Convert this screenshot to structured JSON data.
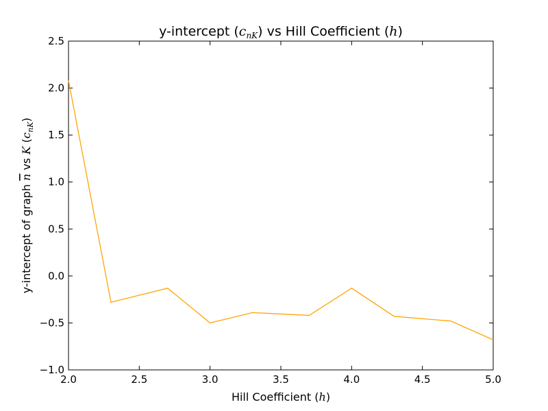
{
  "chart_data": {
    "type": "line",
    "title": {
      "prefix": "y-intercept (",
      "math": "c",
      "math_sub": "nK",
      "middle": ") vs Hill Coefficient (",
      "math2": "h",
      "suffix": ")"
    },
    "xlabel": {
      "prefix": "Hill Coefficient (",
      "math": "h",
      "suffix": ")"
    },
    "ylabel": {
      "prefix": "y-intercept of graph ",
      "math_nbar": "n",
      "middle": " vs ",
      "math_K": "K",
      "paren_open": " (",
      "math_c": "c",
      "math_sub": "nK",
      "paren_close": ")"
    },
    "xlim": [
      2.0,
      5.0
    ],
    "ylim": [
      -1.0,
      2.5
    ],
    "x_ticks": [
      2.0,
      2.5,
      3.0,
      3.5,
      4.0,
      4.5,
      5.0
    ],
    "x_tick_labels": [
      "2.0",
      "2.5",
      "3.0",
      "3.5",
      "4.0",
      "4.5",
      "5.0"
    ],
    "y_ticks": [
      -1.0,
      -0.5,
      0.0,
      0.5,
      1.0,
      1.5,
      2.0,
      2.5
    ],
    "y_tick_labels": [
      "−1.0",
      "−0.5",
      "0.0",
      "0.5",
      "1.0",
      "1.5",
      "2.0",
      "2.5"
    ],
    "grid": false,
    "series": [
      {
        "color": "#FFA500",
        "x": [
          2.0,
          2.3,
          2.7,
          3.0,
          3.3,
          3.7,
          4.0,
          4.3,
          4.7,
          5.0
        ],
        "y": [
          2.08,
          -0.28,
          -0.13,
          -0.5,
          -0.39,
          -0.42,
          -0.13,
          -0.43,
          -0.48,
          -0.68
        ]
      }
    ]
  }
}
